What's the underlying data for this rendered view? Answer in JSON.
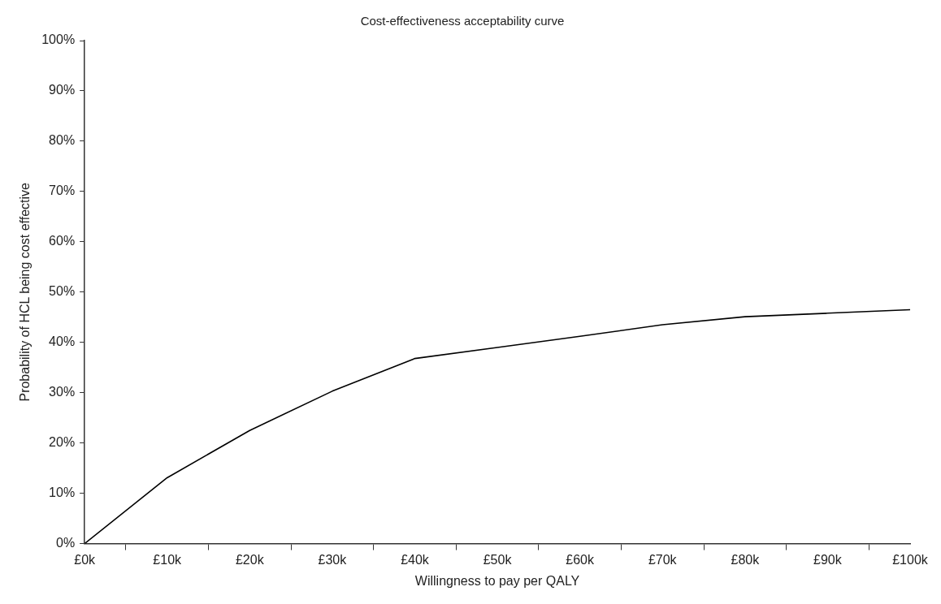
{
  "chart_data": {
    "type": "line",
    "title": "Cost-effectiveness acceptability curve",
    "xlabel": "Willingness to pay per QALY",
    "ylabel": "Probability of HCL being cost effective",
    "x": [
      0,
      10,
      20,
      30,
      40,
      50,
      60,
      70,
      80,
      90,
      100
    ],
    "series": [
      {
        "color": "#000000",
        "values": [
          0,
          13.1,
          22.5,
          30.3,
          36.8,
          39,
          41.2,
          43.5,
          45.1,
          45.8,
          46.5
        ]
      }
    ],
    "xlim": [
      0,
      100
    ],
    "xticks": [
      {
        "value": 0,
        "label": "£0k"
      },
      {
        "value": 5,
        "label": null
      },
      {
        "value": 10,
        "label": "£10k"
      },
      {
        "value": 15,
        "label": null
      },
      {
        "value": 20,
        "label": "£20k"
      },
      {
        "value": 25,
        "label": null
      },
      {
        "value": 30,
        "label": "£30k"
      },
      {
        "value": 35,
        "label": null
      },
      {
        "value": 40,
        "label": "£40k"
      },
      {
        "value": 45,
        "label": null
      },
      {
        "value": 50,
        "label": "£50k"
      },
      {
        "value": 55,
        "label": null
      },
      {
        "value": 60,
        "label": "£60k"
      },
      {
        "value": 65,
        "label": null
      },
      {
        "value": 70,
        "label": "£70k"
      },
      {
        "value": 75,
        "label": null
      },
      {
        "value": 80,
        "label": "£80k"
      },
      {
        "value": 85,
        "label": null
      },
      {
        "value": 90,
        "label": "£90k"
      },
      {
        "value": 95,
        "label": null
      },
      {
        "value": 100,
        "label": "£100k"
      }
    ],
    "ylim": [
      0,
      100
    ],
    "yticks": [
      {
        "value": 0,
        "label": "0%"
      },
      {
        "value": 10,
        "label": "10%"
      },
      {
        "value": 20,
        "label": "20%"
      },
      {
        "value": 30,
        "label": "30%"
      },
      {
        "value": 40,
        "label": "40%"
      },
      {
        "value": 50,
        "label": "50%"
      },
      {
        "value": 60,
        "label": "60%"
      },
      {
        "value": 70,
        "label": "70%"
      },
      {
        "value": 80,
        "label": "80%"
      },
      {
        "value": 90,
        "label": "90%"
      },
      {
        "value": 100,
        "label": "100%"
      }
    ],
    "grid": false,
    "legend": false,
    "marker": "none",
    "line_style": "solid"
  }
}
